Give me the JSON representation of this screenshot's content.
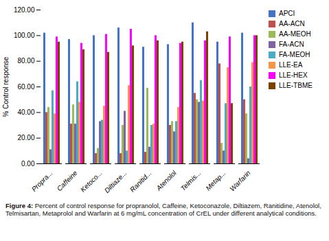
{
  "chart_data": {
    "type": "bar",
    "categories": [
      "Propra...",
      "Caffeine",
      "Ketoco...",
      "Diltiaze...",
      "Ranitid...",
      "Atenolol",
      "Telmis...",
      "Metap...",
      "Warfarin"
    ],
    "series": [
      {
        "name": "APCI",
        "color": "#4472C4",
        "values": [
          102,
          97,
          100,
          106,
          91,
          93,
          110,
          95,
          102
        ]
      },
      {
        "name": "AA-ACN",
        "color": "#C0504D",
        "values": [
          40,
          31,
          8,
          8,
          9,
          30,
          55,
          78,
          50
        ]
      },
      {
        "name": "AA-MEOH",
        "color": "#9BBB59",
        "values": [
          44,
          46,
          12,
          30,
          59,
          33,
          50,
          16,
          39
        ]
      },
      {
        "name": "FA-ACN",
        "color": "#8064A2",
        "values": [
          11,
          31,
          33,
          41,
          13,
          25,
          48,
          10,
          4
        ]
      },
      {
        "name": "FA-MEOH",
        "color": "#4BACC6",
        "values": [
          57,
          64,
          34,
          10,
          30,
          33,
          65,
          47,
          60
        ]
      },
      {
        "name": "LLE-EA",
        "color": "#F79646",
        "values": [
          39,
          48,
          45,
          61,
          31,
          44,
          49,
          75,
          79
        ]
      },
      {
        "name": "LLE-HEX",
        "color": "#FF00FF",
        "values": [
          99,
          94,
          101,
          105,
          100,
          94,
          96,
          99,
          100
        ]
      },
      {
        "name": "LLE-TBME",
        "color": "#7B3F00",
        "values": [
          95,
          89,
          87,
          92,
          96,
          95,
          103,
          47,
          100
        ]
      }
    ],
    "ylabel": "% Control response",
    "ylim": [
      0,
      120
    ],
    "yticks": [
      {
        "value": 0,
        "label": "0.00"
      },
      {
        "value": 20,
        "label": "20.00"
      },
      {
        "value": 40,
        "label": "40.00"
      },
      {
        "value": 60,
        "label": "60.00"
      },
      {
        "value": 80,
        "label": "80.00"
      },
      {
        "value": 100,
        "label": "100.00"
      },
      {
        "value": 120,
        "label": "120.00"
      }
    ],
    "caption": "Figure 4: Percent of control response for propranolol, Caffeine, Ketoconazole, Diltiazem, Ranitidine, Atenolol, Telmisartan, Metaprolol and Warfarin at 6 mg/mL concentration of CrEL under different analytical conditions.",
    "grid": false,
    "legend": "right"
  }
}
